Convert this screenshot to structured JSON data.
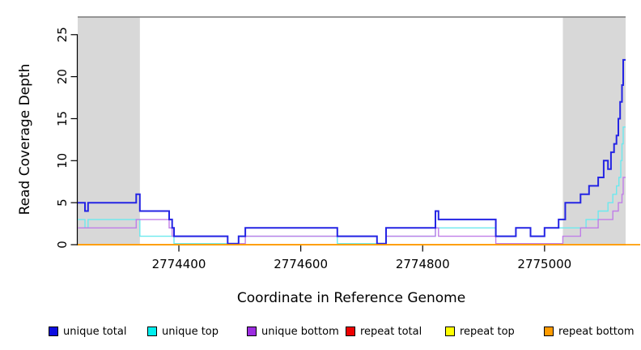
{
  "chart_data": {
    "type": "line",
    "step_style": "step-after",
    "title": "",
    "xlabel": "Coordinate in Reference Genome",
    "ylabel": "Read Coverage Depth",
    "xlim": [
      2774234,
      2775133
    ],
    "ylim": [
      0,
      27.1
    ],
    "grid": false,
    "legend_position": "bottom",
    "x_ticks": {
      "values": [
        2774400,
        2774600,
        2774800,
        2775000
      ],
      "labels": [
        "2774400",
        "2774600",
        "2774800",
        "2775000"
      ]
    },
    "y_ticks": {
      "values": [
        0,
        5,
        10,
        15,
        20,
        25
      ],
      "labels": [
        "0",
        "5",
        "10",
        "15",
        "20",
        "25"
      ]
    },
    "shaded_regions": [
      {
        "x_from": 2774234,
        "x_to": 2774336,
        "color": "#d8d8d8"
      },
      {
        "x_from": 2775030,
        "x_to": 2775133,
        "color": "#d8d8d8"
      }
    ],
    "top_border_color": "#8a8a8a",
    "axis_color": "#000000",
    "series": [
      {
        "name": "unique total",
        "color": "#2424e4",
        "legend_color": "#0d0de0",
        "line_width": 2,
        "zero_lift": true,
        "end": 2775133,
        "points": [
          [
            2774234,
            5
          ],
          [
            2774246,
            4
          ],
          [
            2774251,
            5
          ],
          [
            2774330,
            6
          ],
          [
            2774336,
            4
          ],
          [
            2774384,
            3
          ],
          [
            2774389,
            2
          ],
          [
            2774392,
            1
          ],
          [
            2774480,
            0
          ],
          [
            2774498,
            1
          ],
          [
            2774509,
            2
          ],
          [
            2774660,
            1
          ],
          [
            2774725,
            0
          ],
          [
            2774740,
            2
          ],
          [
            2774821,
            4
          ],
          [
            2774826,
            3
          ],
          [
            2774920,
            1
          ],
          [
            2774953,
            2
          ],
          [
            2774977,
            1
          ],
          [
            2775000,
            2
          ],
          [
            2775023,
            3
          ],
          [
            2775034,
            5
          ],
          [
            2775059,
            6
          ],
          [
            2775073,
            7
          ],
          [
            2775088,
            8
          ],
          [
            2775097,
            10
          ],
          [
            2775104,
            9
          ],
          [
            2775109,
            11
          ],
          [
            2775114,
            12
          ],
          [
            2775118,
            13
          ],
          [
            2775121,
            15
          ],
          [
            2775124,
            17
          ],
          [
            2775127,
            19
          ],
          [
            2775129,
            22
          ]
        ]
      },
      {
        "name": "unique top",
        "color": "#6ce9ee",
        "legend_color": "#00eeee",
        "line_width": 1.4,
        "zero_lift": true,
        "end": 2775133,
        "points": [
          [
            2774234,
            3
          ],
          [
            2774246,
            2
          ],
          [
            2774251,
            3
          ],
          [
            2774336,
            1
          ],
          [
            2774392,
            0
          ],
          [
            2774498,
            1
          ],
          [
            2774660,
            0
          ],
          [
            2774740,
            1
          ],
          [
            2774821,
            2
          ],
          [
            2774920,
            1
          ],
          [
            2774953,
            2
          ],
          [
            2774977,
            1
          ],
          [
            2775000,
            2
          ],
          [
            2775068,
            3
          ],
          [
            2775088,
            4
          ],
          [
            2775104,
            5
          ],
          [
            2775112,
            6
          ],
          [
            2775118,
            7
          ],
          [
            2775122,
            8
          ],
          [
            2775125,
            10
          ],
          [
            2775127,
            12
          ],
          [
            2775129,
            14
          ]
        ]
      },
      {
        "name": "unique bottom",
        "color": "#c07ee8",
        "legend_color": "#9c2ce0",
        "line_width": 1.4,
        "zero_lift": true,
        "end": 2775133,
        "points": [
          [
            2774234,
            2
          ],
          [
            2774330,
            3
          ],
          [
            2774384,
            2
          ],
          [
            2774389,
            1
          ],
          [
            2774480,
            0
          ],
          [
            2774509,
            1
          ],
          [
            2774725,
            0
          ],
          [
            2774740,
            1
          ],
          [
            2774821,
            2
          ],
          [
            2774826,
            1
          ],
          [
            2774920,
            0
          ],
          [
            2775030,
            1
          ],
          [
            2775059,
            2
          ],
          [
            2775088,
            3
          ],
          [
            2775112,
            4
          ],
          [
            2775121,
            5
          ],
          [
            2775127,
            6
          ],
          [
            2775129,
            8
          ]
        ]
      },
      {
        "name": "repeat total",
        "color": "#dd0000",
        "legend_color": "#ee0000",
        "line_width": 1.4,
        "zero_lift": false,
        "end": 2775133,
        "points": [
          [
            2774234,
            0
          ]
        ]
      },
      {
        "name": "repeat top",
        "color": "#ffff00",
        "legend_color": "#ffff00",
        "line_width": 1.4,
        "zero_lift": false,
        "end": 2775133,
        "points": [
          [
            2774234,
            0
          ]
        ]
      },
      {
        "name": "repeat bottom",
        "color": "#ff9b00",
        "legend_color": "#ff9b00",
        "line_width": 1.8,
        "zero_lift": false,
        "end": 2775157,
        "points": [
          [
            2774234,
            0
          ]
        ]
      }
    ],
    "draw_order": [
      "repeat total",
      "repeat top",
      "unique top",
      "unique bottom",
      "unique total",
      "repeat bottom"
    ],
    "legend": [
      {
        "label": "unique total"
      },
      {
        "label": "unique top"
      },
      {
        "label": "unique bottom"
      },
      {
        "label": "repeat total"
      },
      {
        "label": "repeat top"
      },
      {
        "label": "repeat bottom"
      }
    ]
  }
}
